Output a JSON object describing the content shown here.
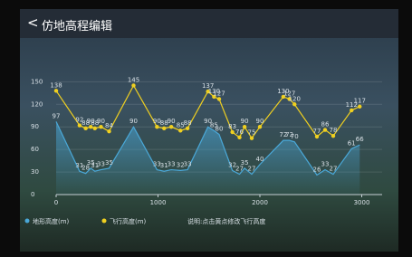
{
  "header": {
    "title": "仿地高程编辑"
  },
  "chart_data": {
    "type": "line",
    "x": [
      0,
      230,
      290,
      340,
      380,
      440,
      520,
      760,
      990,
      1060,
      1130,
      1220,
      1290,
      1490,
      1550,
      1600,
      1730,
      1800,
      1850,
      1920,
      2000,
      2230,
      2290,
      2340,
      2560,
      2640,
      2720,
      2900,
      2980
    ],
    "series": [
      {
        "name": "地形高度(m)",
        "color": "#4aa8d8",
        "values": [
          97,
          31,
          28,
          35,
          31,
          33,
          35,
          90,
          33,
          31,
          33,
          32,
          33,
          90,
          85,
          80,
          32,
          27,
          35,
          27,
          40,
          72,
          72,
          70,
          26,
          33,
          27,
          61,
          66
        ]
      },
      {
        "name": "飞行高度(m)",
        "color": "#f0d020",
        "values": [
          138,
          92,
          88,
          90,
          88,
          90,
          84,
          145,
          90,
          88,
          90,
          85,
          88,
          137,
          130,
          127,
          83,
          76,
          90,
          75,
          90,
          130,
          127,
          120,
          77,
          86,
          78,
          112,
          117
        ]
      }
    ],
    "xlim": [
      0,
      3200
    ],
    "xticks": [
      0,
      1000,
      2000,
      3000
    ],
    "ylim": [
      0,
      160
    ],
    "yticks": [
      0,
      30,
      60,
      90,
      120,
      150
    ],
    "note": "说明:点击黄点修改飞行高度"
  }
}
